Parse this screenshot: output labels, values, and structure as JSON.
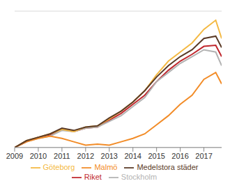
{
  "chart_data": {
    "type": "line",
    "x": [
      2009,
      2009.5,
      2010,
      2010.5,
      2011,
      2011.5,
      2012,
      2012.5,
      2013,
      2013.5,
      2014,
      2014.5,
      2015,
      2015.5,
      2016,
      2016.5,
      2017,
      2017.5,
      2017.75
    ],
    "xlim": [
      2009,
      2017.75
    ],
    "xticks": [
      2009,
      2010,
      2011,
      2012,
      2013,
      2014,
      2015,
      2016,
      2017
    ],
    "ylim": [
      0,
      60
    ],
    "yticks": [
      0,
      10,
      20,
      30,
      40,
      50,
      60
    ],
    "grid": true,
    "tick_labels": "x",
    "legend": "bottom",
    "series": [
      {
        "name": "Riket",
        "color": "#c0272d",
        "values": [
          0,
          2.5,
          4.5,
          5.5,
          8,
          7,
          8.5,
          9,
          12,
          15,
          19,
          23,
          29,
          34,
          38,
          41,
          44.5,
          45,
          40
        ]
      },
      {
        "name": "Stockholm",
        "color": "#b3b3b3",
        "values": [
          0,
          2.5,
          4,
          5,
          7.5,
          7,
          8.5,
          9,
          11.5,
          14,
          18,
          22,
          29,
          33,
          37,
          40,
          43,
          42,
          36
        ]
      },
      {
        "name": "Göteborg",
        "color": "#f4b942",
        "values": [
          0,
          3,
          4.5,
          6,
          8,
          7,
          9,
          9.5,
          12.5,
          16,
          20,
          25,
          32,
          38,
          42,
          46,
          52,
          56,
          48
        ]
      },
      {
        "name": "Malmö",
        "color": "#f28c28",
        "values": [
          0,
          2.5,
          4,
          5,
          4,
          2.5,
          1,
          1.5,
          1,
          2.5,
          4,
          6,
          10,
          14,
          19,
          23,
          30,
          33,
          28
        ]
      },
      {
        "name": "Medelstora städer",
        "color": "#5a3a26",
        "values": [
          0,
          3,
          4.5,
          6,
          8.5,
          7.5,
          9,
          9.5,
          13,
          16,
          20,
          25,
          31,
          36,
          40,
          43,
          48,
          49,
          44
        ]
      }
    ]
  }
}
